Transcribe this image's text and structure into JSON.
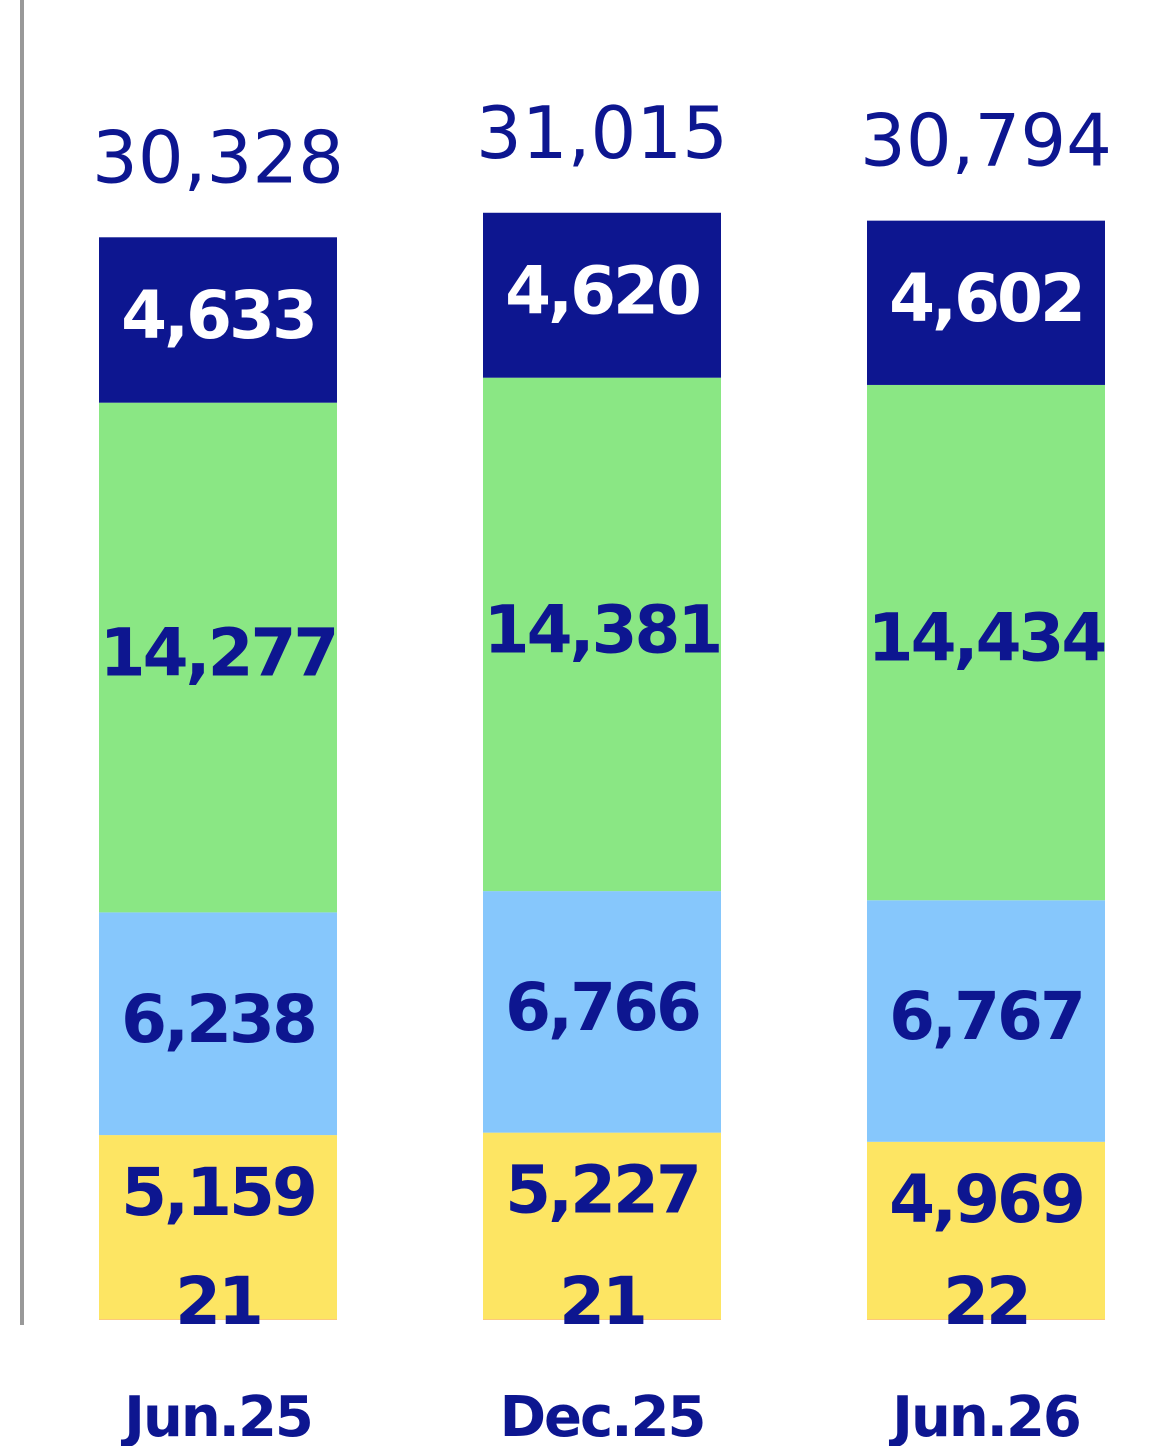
{
  "chart_data": {
    "type": "bar",
    "stacked": true,
    "categories": [
      "Jun.25",
      "Dec.25",
      "Jun.26"
    ],
    "totals": [
      "30,328",
      "31,015",
      "30,794"
    ],
    "series": [
      {
        "values": [
          21,
          21,
          22
        ],
        "labels": [
          "21",
          "21",
          "22"
        ],
        "color": "#fbb36d",
        "label_color": "#0d1690"
      },
      {
        "values": [
          5159,
          5227,
          4969
        ],
        "labels": [
          "5,159",
          "5,227",
          "4,969"
        ],
        "color": "#fde563",
        "label_color": "#0d1690"
      },
      {
        "values": [
          6238,
          6766,
          6767
        ],
        "labels": [
          "6,238",
          "6,766",
          "6,767"
        ],
        "color": "#86c7fc",
        "label_color": "#0d1690"
      },
      {
        "values": [
          14277,
          14381,
          14434
        ],
        "labels": [
          "14,277",
          "14,381",
          "14,434"
        ],
        "color": "#8ae784",
        "label_color": "#0d1690"
      },
      {
        "values": [
          4633,
          4620,
          4602
        ],
        "labels": [
          "4,633",
          "4,620",
          "4,602"
        ],
        "color": "#0d1690",
        "label_color": "#ffffff"
      }
    ],
    "title": "",
    "xlabel": "",
    "ylabel": "",
    "grid": false,
    "legend": "none"
  }
}
